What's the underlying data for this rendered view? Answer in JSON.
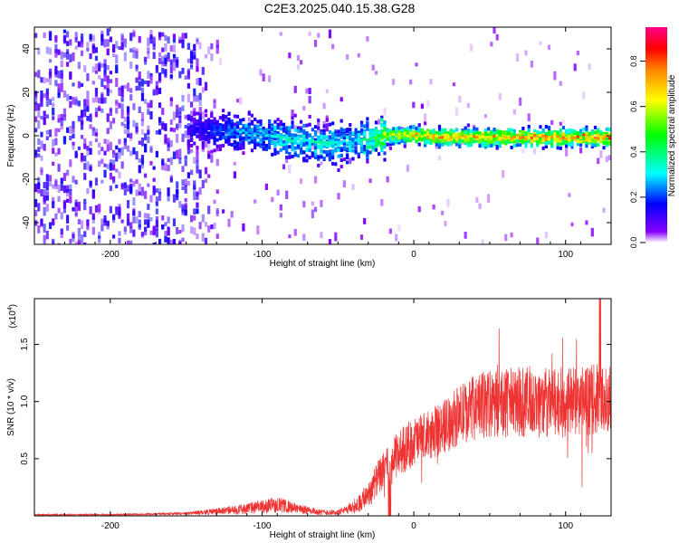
{
  "title": "C2E3.2025.040.15.38.G28",
  "chart_data": [
    {
      "type": "heatmap",
      "title": "",
      "xlabel": "Height of straight line (km)",
      "ylabel": "Frequency (Hz)",
      "xlim": [
        -250,
        130
      ],
      "ylim": [
        -50,
        50
      ],
      "x_ticks": [
        -200,
        -100,
        0,
        100
      ],
      "x_tick_labels": [
        "-200",
        "-100",
        "0",
        "100"
      ],
      "y_ticks": [
        -40,
        -20,
        0,
        20,
        40
      ],
      "y_tick_labels": [
        "-40",
        "-20",
        "0",
        "20",
        "40"
      ],
      "colorbar": {
        "label": "Normalized spectral amplitude",
        "range": [
          0,
          0.95
        ],
        "ticks": [
          0.0,
          0.2,
          0.4,
          0.6,
          0.8
        ],
        "tick_labels": [
          "0.0",
          "0.2",
          "0.4",
          "0.6",
          "0.8"
        ],
        "colors": [
          "#ffffff",
          "#8800ff",
          "#0000ff",
          "#00ffff",
          "#00ff00",
          "#ffff00",
          "#ff8800",
          "#ff0000",
          "#ff0088"
        ]
      },
      "ridge": {
        "x": [
          -140,
          -120,
          -100,
          -80,
          -60,
          -40,
          -20,
          0,
          20,
          40,
          60,
          80,
          100,
          130
        ],
        "center_freq": [
          4,
          3,
          1,
          -1,
          -3,
          -2,
          1,
          1,
          0,
          0,
          0,
          0,
          0,
          0
        ],
        "peak_amplitude": [
          0.15,
          0.25,
          0.3,
          0.35,
          0.35,
          0.3,
          0.55,
          0.65,
          0.7,
          0.7,
          0.7,
          0.75,
          0.7,
          0.75
        ]
      },
      "grid": false
    },
    {
      "type": "line",
      "title": "",
      "xlabel": "Height of straight line (km)",
      "ylabel": "SNR (10 * v/v)",
      "scale_label": "(x10",
      "scale_exp": "4",
      "scale_close": ")",
      "xlim": [
        -250,
        130
      ],
      "ylim": [
        0,
        1.9
      ],
      "x_ticks": [
        -200,
        -100,
        0,
        100
      ],
      "x_tick_labels": [
        "-200",
        "-100",
        "0",
        "100"
      ],
      "y_ticks": [
        0.5,
        1.0,
        1.5
      ],
      "y_tick_labels": [
        "0.5",
        "1.0",
        "1.5"
      ],
      "series": [
        {
          "color": "#ee3333",
          "envelope_x": [
            -250,
            -200,
            -150,
            -120,
            -100,
            -90,
            -80,
            -70,
            -60,
            -50,
            -45,
            -40,
            -35,
            -30,
            -25,
            -20,
            -15,
            -10,
            0,
            10,
            20,
            30,
            40,
            50,
            60,
            70,
            80,
            90,
            100,
            110,
            120,
            130
          ],
          "envelope_mean": [
            0.01,
            0.01,
            0.02,
            0.05,
            0.08,
            0.1,
            0.07,
            0.05,
            0.03,
            0.03,
            0.05,
            0.08,
            0.12,
            0.2,
            0.3,
            0.4,
            0.45,
            0.55,
            0.65,
            0.7,
            0.78,
            0.88,
            0.95,
            0.98,
            0.98,
            1.0,
            1.0,
            0.98,
            1.0,
            1.0,
            1.02,
            1.02
          ],
          "envelope_spread": [
            0.005,
            0.005,
            0.01,
            0.03,
            0.05,
            0.06,
            0.04,
            0.03,
            0.02,
            0.02,
            0.03,
            0.05,
            0.07,
            0.1,
            0.12,
            0.14,
            0.16,
            0.17,
            0.18,
            0.18,
            0.2,
            0.22,
            0.24,
            0.25,
            0.26,
            0.26,
            0.26,
            0.26,
            0.26,
            0.26,
            0.26,
            0.26
          ]
        }
      ],
      "grid": false
    }
  ]
}
